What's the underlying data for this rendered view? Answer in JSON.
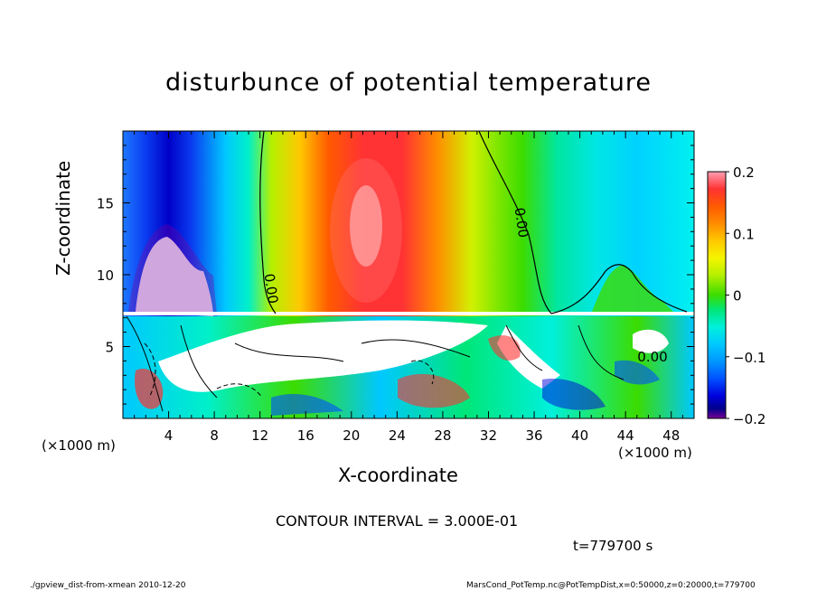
{
  "chart_data": {
    "type": "heatmap",
    "title": "disturbunce of potential temperature",
    "xlabel": "X-coordinate",
    "ylabel": "Z-coordinate",
    "x_units": "(×1000 m)",
    "xlim": [
      0,
      50
    ],
    "ylim": [
      0,
      20
    ],
    "x_ticks": [
      4,
      8,
      12,
      16,
      20,
      24,
      28,
      32,
      36,
      40,
      44,
      48
    ],
    "y_ticks": [
      5,
      10,
      15
    ],
    "colorbar": {
      "range": [
        -0.2,
        0.2
      ],
      "tick_values": [
        0.2,
        0.1,
        0,
        -0.1,
        -0.2
      ],
      "tick_labels": [
        "0.2",
        "0.1",
        "0",
        "−0.1",
        "−0.2"
      ],
      "colors": [
        "#ff9fb4",
        "#ff3333",
        "#ff5a00",
        "#ff8c00",
        "#ffc800",
        "#f5f500",
        "#b4f000",
        "#3cdc00",
        "#00e678",
        "#00f0dc",
        "#00c8ff",
        "#0096ff",
        "#0050ff",
        "#0000dc",
        "#00008c",
        "#780096"
      ]
    },
    "contour_labels": [
      "0.00",
      "0.00",
      "0.00"
    ],
    "contour_interval": "CONTOUR INTERVAL = 3.000E-01",
    "time": "t=779700 s"
  },
  "footer": {
    "left": "./gpview_dist-from-xmean  2010-12-20",
    "right": "MarsCond_PotTemp.nc@PotTempDist,x=0:50000,z=0:20000,t=779700"
  }
}
